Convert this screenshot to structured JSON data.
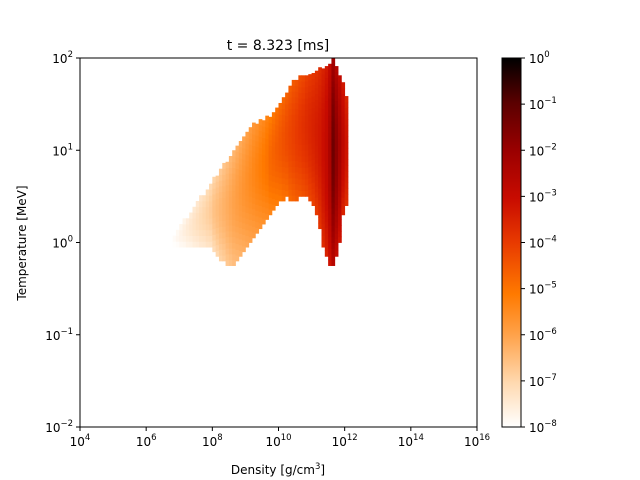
{
  "chart_data": {
    "type": "heatmap",
    "title": "t = 8.323 [ms]",
    "xlabel": {
      "text": "Density [g/cm",
      "sup": "3",
      "suffix": "]"
    },
    "ylabel": "Temperature [MeV]",
    "x_scale": "log",
    "y_scale": "log",
    "xlim": [
      10000,
      10000000000000000
    ],
    "ylim": [
      0.01,
      100
    ],
    "x_ticks": [
      {
        "value": 10000,
        "base": "10",
        "exp": "4"
      },
      {
        "value": 1000000,
        "base": "10",
        "exp": "6"
      },
      {
        "value": 100000000,
        "base": "10",
        "exp": "8"
      },
      {
        "value": 10000000000,
        "base": "10",
        "exp": "10"
      },
      {
        "value": 1000000000000,
        "base": "10",
        "exp": "12"
      },
      {
        "value": 100000000000000,
        "base": "10",
        "exp": "14"
      },
      {
        "value": 10000000000000000,
        "base": "10",
        "exp": "16"
      }
    ],
    "y_ticks": [
      {
        "value": 0.01,
        "base": "10",
        "exp": "−2"
      },
      {
        "value": 0.1,
        "base": "10",
        "exp": "−1"
      },
      {
        "value": 1,
        "base": "10",
        "exp": "0"
      },
      {
        "value": 10,
        "base": "10",
        "exp": "1"
      },
      {
        "value": 100,
        "base": "10",
        "exp": "2"
      }
    ],
    "colorbar": {
      "scale": "log",
      "range": [
        1e-08,
        1
      ],
      "colormap": "gist_heat_r",
      "ticks": [
        {
          "value": 1,
          "base": "10",
          "exp": "0"
        },
        {
          "value": 0.1,
          "base": "10",
          "exp": "−1"
        },
        {
          "value": 0.01,
          "base": "10",
          "exp": "−2"
        },
        {
          "value": 0.001,
          "base": "10",
          "exp": "−3"
        },
        {
          "value": 0.0001,
          "base": "10",
          "exp": "−4"
        },
        {
          "value": 1e-05,
          "base": "10",
          "exp": "−5"
        },
        {
          "value": 1e-06,
          "base": "10",
          "exp": "−6"
        },
        {
          "value": 1e-07,
          "base": "10",
          "exp": "−7"
        },
        {
          "value": 1e-08,
          "base": "10",
          "exp": "−8"
        }
      ]
    },
    "value_units": "log10 of mass fraction per bin",
    "bins": {
      "x_log_start": 6.7,
      "x_log_step": 0.1,
      "y_log_step": 0.0625,
      "columns": [
        {
          "ylog_min": -0.05,
          "ylog_max": 0.0,
          "low": -8.0,
          "high": -8.0
        },
        {
          "ylog_min": -0.05,
          "ylog_max": 0.05,
          "low": -8.0,
          "high": -7.9
        },
        {
          "ylog_min": -0.05,
          "ylog_max": 0.1,
          "low": -8.0,
          "high": -7.8
        },
        {
          "ylog_min": -0.05,
          "ylog_max": 0.15,
          "low": -7.9,
          "high": -7.7
        },
        {
          "ylog_min": -0.05,
          "ylog_max": 0.2,
          "low": -7.9,
          "high": -7.6
        },
        {
          "ylog_min": -0.05,
          "ylog_max": 0.25,
          "low": -7.8,
          "high": -7.5
        },
        {
          "ylog_min": -0.05,
          "ylog_max": 0.3,
          "low": -7.8,
          "high": -7.4
        },
        {
          "ylog_min": -0.05,
          "ylog_max": 0.35,
          "low": -7.7,
          "high": -7.3
        },
        {
          "ylog_min": -0.05,
          "ylog_max": 0.4,
          "low": -7.7,
          "high": -7.2
        },
        {
          "ylog_min": -0.05,
          "ylog_max": 0.45,
          "low": -7.6,
          "high": -7.1
        },
        {
          "ylog_min": -0.05,
          "ylog_max": 0.5,
          "low": -7.6,
          "high": -7.0
        },
        {
          "ylog_min": -0.05,
          "ylog_max": 0.55,
          "low": -7.5,
          "high": -6.9
        },
        {
          "ylog_min": -0.05,
          "ylog_max": 0.6,
          "low": -7.5,
          "high": -6.8
        },
        {
          "ylog_min": -0.1,
          "ylog_max": 0.65,
          "low": -7.4,
          "high": -6.6
        },
        {
          "ylog_min": -0.15,
          "ylog_max": 0.7,
          "low": -7.3,
          "high": -6.5
        },
        {
          "ylog_min": -0.2,
          "ylog_max": 0.75,
          "low": -7.2,
          "high": -6.4
        },
        {
          "ylog_min": -0.2,
          "ylog_max": 0.8,
          "low": -7.1,
          "high": -6.3
        },
        {
          "ylog_min": -0.25,
          "ylog_max": 0.85,
          "low": -7.0,
          "high": -6.2
        },
        {
          "ylog_min": -0.25,
          "ylog_max": 0.9,
          "low": -6.9,
          "high": -6.1
        },
        {
          "ylog_min": -0.25,
          "ylog_max": 0.95,
          "low": -6.8,
          "high": -6.0
        },
        {
          "ylog_min": -0.2,
          "ylog_max": 1.0,
          "low": -6.7,
          "high": -5.9
        },
        {
          "ylog_min": -0.15,
          "ylog_max": 1.05,
          "low": -6.6,
          "high": -5.8
        },
        {
          "ylog_min": -0.1,
          "ylog_max": 1.1,
          "low": -6.5,
          "high": -5.7
        },
        {
          "ylog_min": -0.05,
          "ylog_max": 1.15,
          "low": -6.4,
          "high": -5.6
        },
        {
          "ylog_min": 0.0,
          "ylog_max": 1.2,
          "low": -6.3,
          "high": -5.5
        },
        {
          "ylog_min": 0.05,
          "ylog_max": 1.25,
          "low": -6.2,
          "high": -5.4
        },
        {
          "ylog_min": 0.1,
          "ylog_max": 1.25,
          "low": -6.1,
          "high": -5.3
        },
        {
          "ylog_min": 0.15,
          "ylog_max": 1.3,
          "low": -6.0,
          "high": -5.2
        },
        {
          "ylog_min": 0.2,
          "ylog_max": 1.3,
          "low": -5.9,
          "high": -5.1
        },
        {
          "ylog_min": 0.25,
          "ylog_max": 1.35,
          "low": -5.8,
          "high": -5.0
        },
        {
          "ylog_min": 0.3,
          "ylog_max": 1.35,
          "low": -5.7,
          "high": -4.8
        },
        {
          "ylog_min": 0.35,
          "ylog_max": 1.4,
          "low": -5.6,
          "high": -4.7
        },
        {
          "ylog_min": 0.4,
          "ylog_max": 1.45,
          "low": -5.5,
          "high": -4.6
        },
        {
          "ylog_min": 0.45,
          "ylog_max": 1.5,
          "low": -5.4,
          "high": -4.5
        },
        {
          "ylog_min": 0.45,
          "ylog_max": 1.55,
          "low": -5.3,
          "high": -4.4
        },
        {
          "ylog_min": 0.5,
          "ylog_max": 1.6,
          "low": -5.2,
          "high": -4.3
        },
        {
          "ylog_min": 0.45,
          "ylog_max": 1.65,
          "low": -5.1,
          "high": -4.2
        },
        {
          "ylog_min": 0.45,
          "ylog_max": 1.7,
          "low": -5.0,
          "high": -4.1
        },
        {
          "ylog_min": 0.45,
          "ylog_max": 1.7,
          "low": -4.9,
          "high": -4.0
        },
        {
          "ylog_min": 0.5,
          "ylog_max": 1.75,
          "low": -4.8,
          "high": -3.9
        },
        {
          "ylog_min": 0.5,
          "ylog_max": 1.75,
          "low": -4.7,
          "high": -3.8
        },
        {
          "ylog_min": 0.5,
          "ylog_max": 1.8,
          "low": -4.6,
          "high": -3.7
        },
        {
          "ylog_min": 0.45,
          "ylog_max": 1.8,
          "low": -4.5,
          "high": -3.6
        },
        {
          "ylog_min": 0.4,
          "ylog_max": 1.8,
          "low": -4.4,
          "high": -3.5
        },
        {
          "ylog_min": 0.3,
          "ylog_max": 1.8,
          "low": -4.3,
          "high": -3.4
        },
        {
          "ylog_min": 0.15,
          "ylog_max": 1.85,
          "low": -4.2,
          "high": -3.3
        },
        {
          "ylog_min": -0.05,
          "ylog_max": 1.85,
          "low": -4.0,
          "high": -3.1
        },
        {
          "ylog_min": -0.15,
          "ylog_max": 1.85,
          "low": -3.8,
          "high": -2.9
        },
        {
          "ylog_min": -0.25,
          "ylog_max": 1.9,
          "low": -3.6,
          "high": -2.4
        },
        {
          "ylog_min": -0.25,
          "ylog_max": 1.95,
          "low": -3.4,
          "high": -1.3
        },
        {
          "ylog_min": -0.15,
          "ylog_max": 1.85,
          "low": -3.5,
          "high": -1.8
        },
        {
          "ylog_min": 0.0,
          "ylog_max": 1.8,
          "low": -3.7,
          "high": -2.3
        },
        {
          "ylog_min": 0.3,
          "ylog_max": 1.7,
          "low": -3.9,
          "high": -2.8
        },
        {
          "ylog_min": 0.4,
          "ylog_max": 1.55,
          "low": -4.0,
          "high": -3.2
        }
      ]
    }
  }
}
